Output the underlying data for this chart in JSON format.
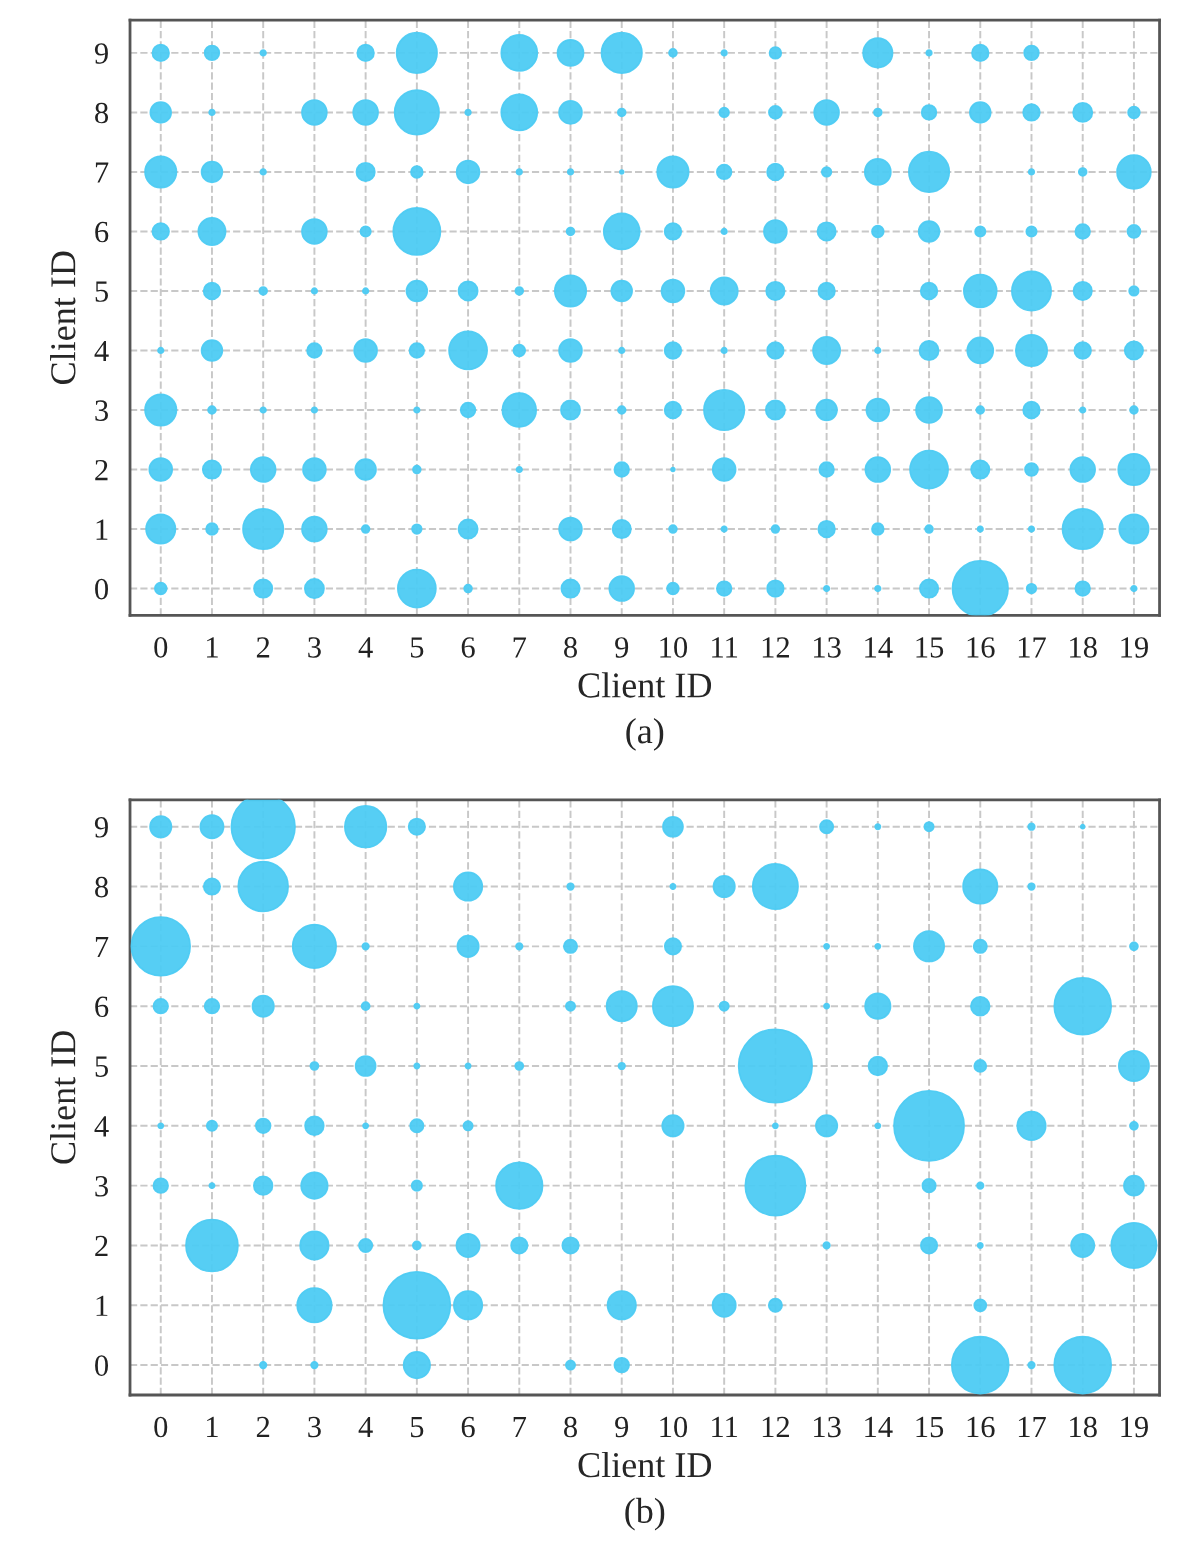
{
  "chart_data": [
    {
      "type": "bubble",
      "xlabel": "Client ID",
      "ylabel": "Client ID",
      "annotations": [
        "(a)"
      ],
      "xlim": [
        -0.6,
        19.5
      ],
      "ylim": [
        -0.45,
        9.55
      ],
      "xticks": [
        0,
        1,
        2,
        3,
        4,
        5,
        6,
        7,
        8,
        9,
        10,
        11,
        12,
        13,
        14,
        15,
        16,
        17,
        18,
        19
      ],
      "yticks": [
        0,
        1,
        2,
        3,
        4,
        5,
        6,
        7,
        8,
        9
      ],
      "grid": true,
      "series": [
        {
          "color": "#4dcbf3",
          "x": [
            0,
            1,
            2,
            4,
            5,
            7,
            8,
            9,
            10,
            11,
            12,
            14,
            15,
            16,
            17
          ],
          "values": [
            9,
            9,
            9,
            9,
            9,
            9,
            9,
            9,
            9,
            9,
            9,
            9,
            9,
            9,
            9
          ],
          "sizes": [
            0.09,
            0.07,
            0.01,
            0.09,
            0.53,
            0.42,
            0.22,
            0.53,
            0.02,
            0.01,
            0.045,
            0.28,
            0.01,
            0.09,
            0.07
          ]
        },
        {
          "color": "#4dcbf3",
          "x": [
            0,
            1,
            3,
            4,
            5,
            6,
            7,
            8,
            9,
            11,
            12,
            13,
            14,
            15,
            16,
            17,
            18,
            19
          ],
          "values": [
            8,
            8,
            8,
            8,
            8,
            8,
            8,
            8,
            8,
            8,
            8,
            8,
            8,
            8,
            8,
            8,
            8,
            8
          ],
          "sizes": [
            0.14,
            0.01,
            0.2,
            0.2,
            0.64,
            0.01,
            0.42,
            0.17,
            0.02,
            0.03,
            0.055,
            0.2,
            0.02,
            0.07,
            0.14,
            0.09,
            0.12,
            0.045
          ]
        },
        {
          "color": "#4dcbf3",
          "x": [
            0,
            1,
            2,
            4,
            5,
            6,
            7,
            8,
            9,
            10,
            11,
            12,
            13,
            14,
            15,
            17,
            18,
            19
          ],
          "values": [
            7,
            7,
            7,
            7,
            7,
            7,
            7,
            7,
            7,
            7,
            7,
            7,
            7,
            7,
            7,
            7,
            7,
            7
          ],
          "sizes": [
            0.32,
            0.14,
            0.01,
            0.11,
            0.045,
            0.17,
            0.01,
            0.01,
            0.005,
            0.32,
            0.07,
            0.09,
            0.03,
            0.22,
            0.53,
            0.01,
            0.02,
            0.37
          ]
        },
        {
          "color": "#4dcbf3",
          "x": [
            0,
            1,
            3,
            4,
            5,
            8,
            9,
            10,
            11,
            12,
            13,
            14,
            15,
            16,
            17,
            18,
            19
          ],
          "values": [
            6,
            6,
            6,
            6,
            6,
            6,
            6,
            6,
            6,
            6,
            6,
            6,
            6,
            6,
            6,
            6,
            6
          ],
          "sizes": [
            0.09,
            0.24,
            0.2,
            0.035,
            0.72,
            0.02,
            0.42,
            0.09,
            0.01,
            0.17,
            0.11,
            0.045,
            0.14,
            0.035,
            0.035,
            0.07,
            0.055
          ]
        },
        {
          "color": "#4dcbf3",
          "x": [
            1,
            2,
            3,
            4,
            5,
            6,
            7,
            8,
            9,
            10,
            11,
            12,
            13,
            15,
            16,
            17,
            18,
            19
          ],
          "values": [
            5,
            5,
            5,
            5,
            5,
            5,
            5,
            5,
            5,
            5,
            5,
            5,
            5,
            5,
            5,
            5,
            5,
            5
          ],
          "sizes": [
            0.09,
            0.02,
            0.01,
            0.01,
            0.14,
            0.12,
            0.02,
            0.32,
            0.14,
            0.17,
            0.24,
            0.11,
            0.09,
            0.09,
            0.35,
            0.5,
            0.11,
            0.03
          ]
        },
        {
          "color": "#4dcbf3",
          "x": [
            0,
            1,
            3,
            4,
            5,
            6,
            7,
            8,
            9,
            10,
            11,
            12,
            13,
            14,
            15,
            16,
            17,
            18,
            19
          ],
          "values": [
            4,
            4,
            4,
            4,
            4,
            4,
            4,
            4,
            4,
            4,
            4,
            4,
            4,
            4,
            4,
            4,
            4,
            4,
            4
          ],
          "sizes": [
            0.01,
            0.14,
            0.07,
            0.17,
            0.07,
            0.47,
            0.045,
            0.17,
            0.01,
            0.09,
            0.01,
            0.09,
            0.24,
            0.01,
            0.12,
            0.22,
            0.32,
            0.09,
            0.11
          ]
        },
        {
          "color": "#4dcbf3",
          "x": [
            0,
            1,
            2,
            3,
            5,
            6,
            7,
            8,
            9,
            10,
            11,
            12,
            13,
            14,
            15,
            16,
            17,
            18,
            19
          ],
          "values": [
            3,
            3,
            3,
            3,
            3,
            3,
            3,
            3,
            3,
            3,
            3,
            3,
            3,
            3,
            3,
            3,
            3,
            3,
            3
          ],
          "sizes": [
            0.32,
            0.02,
            0.01,
            0.01,
            0.01,
            0.07,
            0.37,
            0.12,
            0.02,
            0.09,
            0.53,
            0.12,
            0.14,
            0.17,
            0.22,
            0.02,
            0.09,
            0.01,
            0.02
          ]
        },
        {
          "color": "#4dcbf3",
          "x": [
            0,
            1,
            2,
            3,
            4,
            5,
            7,
            9,
            10,
            11,
            13,
            14,
            15,
            16,
            17,
            18,
            19
          ],
          "values": [
            2,
            2,
            2,
            2,
            2,
            2,
            2,
            2,
            2,
            2,
            2,
            2,
            2,
            2,
            2,
            2,
            2
          ],
          "sizes": [
            0.17,
            0.11,
            0.2,
            0.17,
            0.14,
            0.02,
            0.01,
            0.07,
            0.005,
            0.17,
            0.07,
            0.2,
            0.47,
            0.11,
            0.055,
            0.2,
            0.32
          ]
        },
        {
          "color": "#4dcbf3",
          "x": [
            0,
            1,
            2,
            3,
            4,
            5,
            6,
            8,
            9,
            10,
            11,
            12,
            13,
            14,
            15,
            16,
            17,
            18,
            19
          ],
          "values": [
            1,
            1,
            1,
            1,
            1,
            1,
            1,
            1,
            1,
            1,
            1,
            1,
            1,
            1,
            1,
            1,
            1,
            1,
            1
          ],
          "sizes": [
            0.28,
            0.045,
            0.53,
            0.2,
            0.02,
            0.03,
            0.12,
            0.17,
            0.11,
            0.02,
            0.01,
            0.02,
            0.09,
            0.045,
            0.02,
            0.01,
            0.01,
            0.53,
            0.28
          ]
        },
        {
          "color": "#4dcbf3",
          "x": [
            0,
            2,
            3,
            5,
            6,
            8,
            9,
            10,
            11,
            12,
            13,
            14,
            15,
            16,
            17,
            18,
            19
          ],
          "values": [
            0,
            0,
            0,
            0,
            0,
            0,
            0,
            0,
            0,
            0,
            0,
            0,
            0,
            0,
            0,
            0,
            0
          ],
          "sizes": [
            0.045,
            0.11,
            0.12,
            0.47,
            0.02,
            0.11,
            0.2,
            0.045,
            0.07,
            0.09,
            0.01,
            0.01,
            0.11,
            1,
            0.03,
            0.07,
            0.01
          ]
        }
      ]
    },
    {
      "type": "bubble",
      "xlabel": "Client ID",
      "ylabel": "Client ID",
      "annotations": [
        "(b)"
      ],
      "xlim": [
        -0.6,
        19.5
      ],
      "ylim": [
        -0.5,
        9.45
      ],
      "xticks": [
        0,
        1,
        2,
        3,
        4,
        5,
        6,
        7,
        8,
        9,
        10,
        11,
        12,
        13,
        14,
        15,
        16,
        17,
        18,
        19
      ],
      "yticks": [
        0,
        1,
        2,
        3,
        4,
        5,
        6,
        7,
        8,
        9
      ],
      "grid": true,
      "series": [
        {
          "color": "#4dcbf3",
          "x": [
            0,
            1,
            2,
            4,
            5,
            10,
            13,
            14,
            15,
            17,
            18
          ],
          "values": [
            9,
            9,
            9,
            9,
            9,
            9,
            9,
            9,
            9,
            9,
            9
          ],
          "sizes": [
            0.085,
            0.1,
            0.75,
            0.32,
            0.05,
            0.074,
            0.033,
            0.005,
            0.016,
            0.008,
            0.003
          ]
        },
        {
          "color": "#4dcbf3",
          "x": [
            1,
            2,
            6,
            8,
            10,
            11,
            12,
            16,
            17
          ],
          "values": [
            8,
            8,
            8,
            8,
            8,
            8,
            8,
            8,
            8
          ],
          "sizes": [
            0.05,
            0.46,
            0.15,
            0.008,
            0.005,
            0.085,
            0.38,
            0.22,
            0.008
          ]
        },
        {
          "color": "#4dcbf3",
          "x": [
            0,
            3,
            4,
            6,
            7,
            8,
            10,
            13,
            14,
            15,
            16,
            19
          ],
          "values": [
            7,
            7,
            7,
            7,
            7,
            7,
            7,
            7,
            7,
            7,
            7,
            7
          ],
          "sizes": [
            0.64,
            0.35,
            0.008,
            0.085,
            0.008,
            0.033,
            0.05,
            0.005,
            0.005,
            0.17,
            0.033,
            0.012
          ]
        },
        {
          "color": "#4dcbf3",
          "x": [
            0,
            1,
            2,
            4,
            5,
            8,
            9,
            10,
            11,
            13,
            14,
            16,
            18
          ],
          "values": [
            6,
            6,
            6,
            6,
            6,
            6,
            6,
            6,
            6,
            6,
            6,
            6,
            6
          ],
          "sizes": [
            0.04,
            0.04,
            0.085,
            0.012,
            0.005,
            0.016,
            0.17,
            0.3,
            0.016,
            0.005,
            0.12,
            0.065,
            0.6
          ]
        },
        {
          "color": "#4dcbf3",
          "x": [
            3,
            4,
            5,
            6,
            7,
            9,
            12,
            14,
            16,
            19
          ],
          "values": [
            5,
            5,
            5,
            5,
            5,
            5,
            5,
            5,
            5,
            5
          ],
          "sizes": [
            0.012,
            0.074,
            0.005,
            0.005,
            0.012,
            0.008,
            1,
            0.065,
            0.027,
            0.17
          ]
        },
        {
          "color": "#4dcbf3",
          "x": [
            0,
            1,
            2,
            3,
            4,
            5,
            6,
            10,
            12,
            13,
            14,
            15,
            17,
            19
          ],
          "values": [
            4,
            4,
            4,
            4,
            4,
            4,
            4,
            4,
            4,
            4,
            4,
            4,
            4,
            4
          ],
          "sizes": [
            0.005,
            0.02,
            0.04,
            0.065,
            0.005,
            0.033,
            0.016,
            0.085,
            0.005,
            0.085,
            0.005,
            0.91,
            0.15,
            0.012
          ]
        },
        {
          "color": "#4dcbf3",
          "x": [
            0,
            1,
            2,
            3,
            5,
            7,
            12,
            15,
            16,
            19
          ],
          "values": [
            3,
            3,
            3,
            3,
            3,
            3,
            3,
            3,
            3,
            3
          ],
          "sizes": [
            0.04,
            0.005,
            0.065,
            0.13,
            0.02,
            0.4,
            0.67,
            0.033,
            0.008,
            0.074
          ]
        },
        {
          "color": "#4dcbf3",
          "x": [
            1,
            3,
            4,
            5,
            6,
            7,
            8,
            13,
            15,
            16,
            18,
            19
          ],
          "values": [
            2,
            2,
            2,
            2,
            2,
            2,
            2,
            2,
            2,
            2,
            2,
            2
          ],
          "sizes": [
            0.5,
            0.15,
            0.033,
            0.012,
            0.1,
            0.05,
            0.05,
            0.008,
            0.05,
            0.005,
            0.1,
            0.38
          ]
        },
        {
          "color": "#4dcbf3",
          "x": [
            3,
            5,
            6,
            9,
            11,
            12,
            16
          ],
          "values": [
            1,
            1,
            1,
            1,
            1,
            1,
            1
          ],
          "sizes": [
            0.22,
            0.83,
            0.15,
            0.15,
            0.1,
            0.033,
            0.027
          ]
        },
        {
          "color": "#4dcbf3",
          "x": [
            2,
            3,
            5,
            8,
            9,
            16,
            17,
            18
          ],
          "values": [
            0,
            0,
            0,
            0,
            0,
            0,
            0,
            0
          ],
          "sizes": [
            0.008,
            0.008,
            0.13,
            0.016,
            0.04,
            0.6,
            0.008,
            0.6
          ]
        }
      ]
    }
  ]
}
